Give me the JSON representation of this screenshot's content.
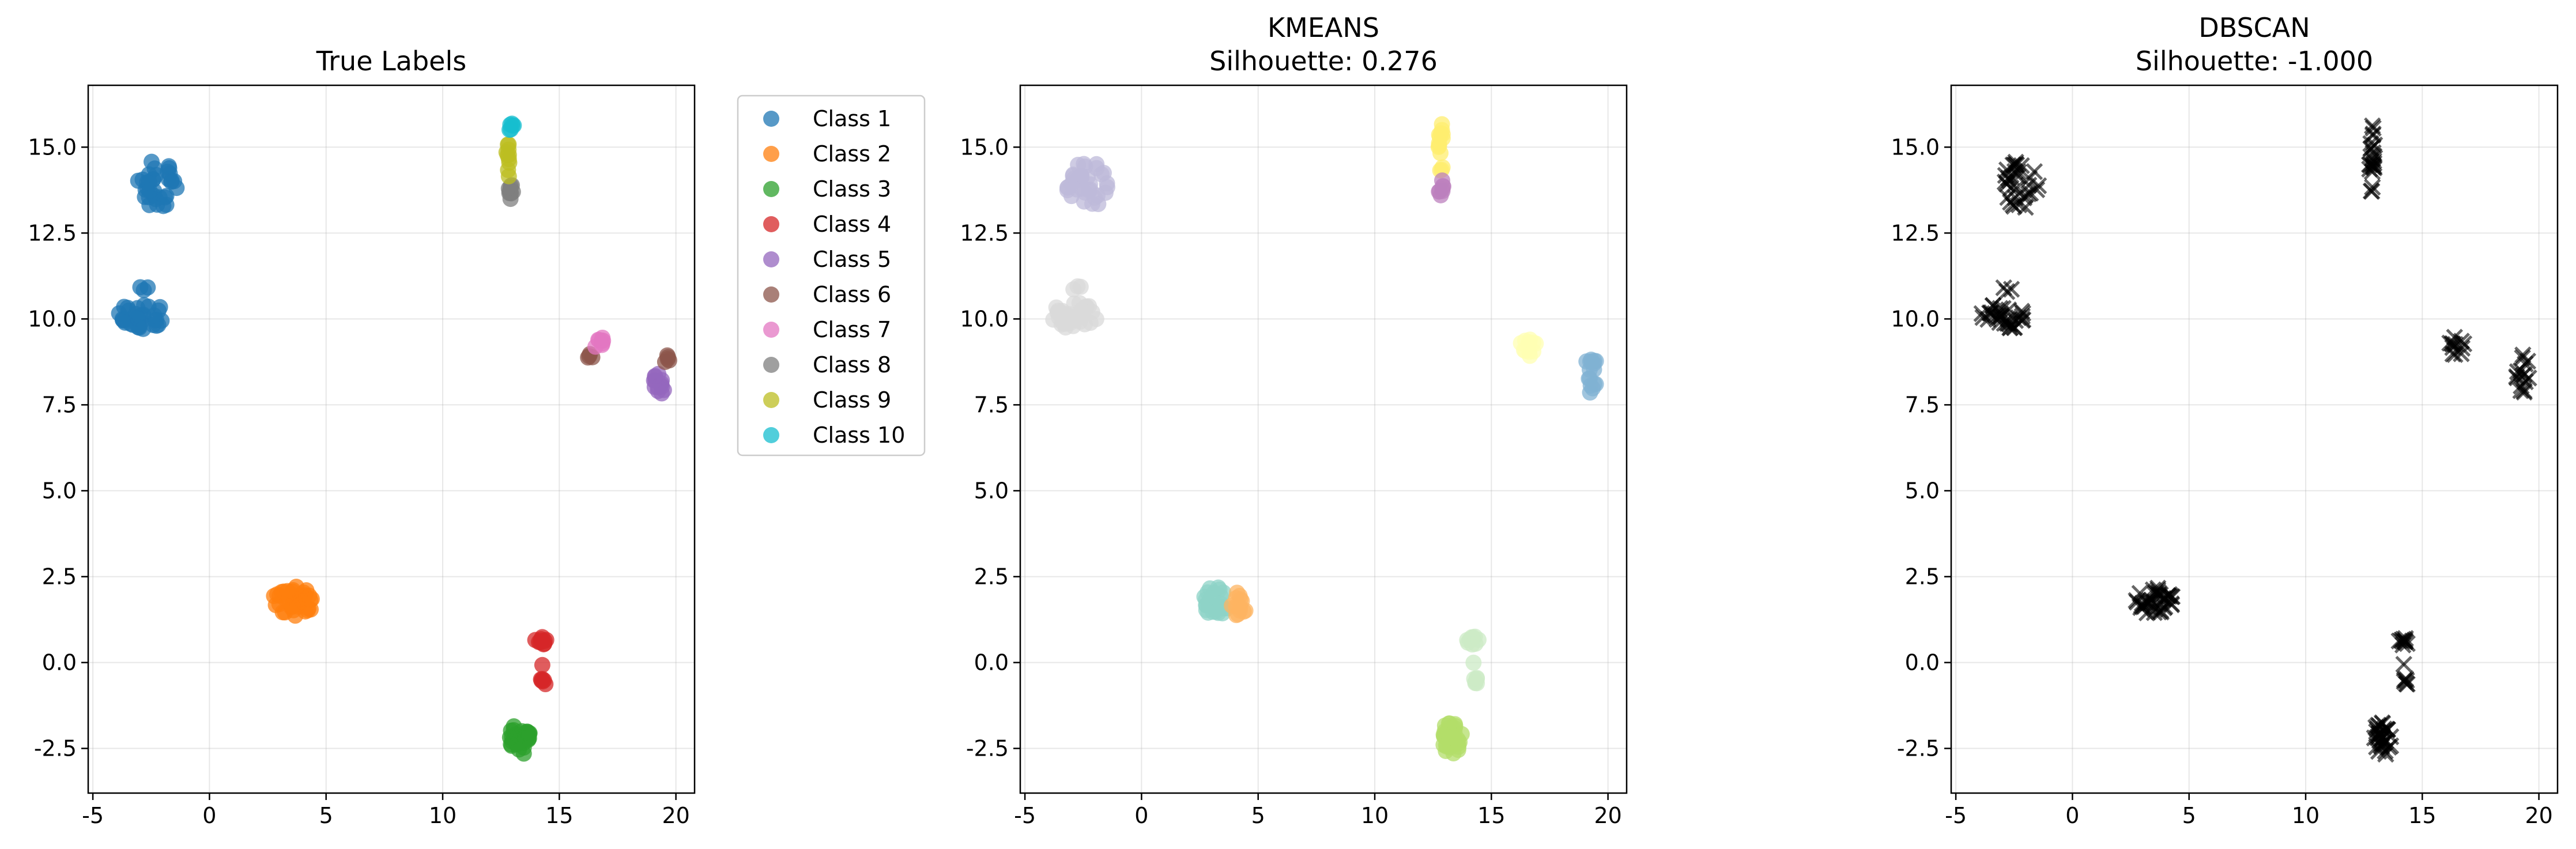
{
  "chart_data": [
    {
      "type": "scatter",
      "title": "True Labels",
      "subtitle": "",
      "xlabel": "",
      "ylabel": "",
      "xlim": [
        -5.2,
        20.8
      ],
      "ylim": [
        -3.8,
        16.8
      ],
      "xticks": [
        -5,
        0,
        5,
        10,
        15,
        20
      ],
      "yticks": [
        -2.5,
        0.0,
        2.5,
        5.0,
        7.5,
        10.0,
        12.5,
        15.0
      ],
      "grid": true,
      "legend": {
        "position": "outside-right",
        "entries": [
          "Class 1",
          "Class 2",
          "Class 3",
          "Class 4",
          "Class 5",
          "Class 6",
          "Class 7",
          "Class 8",
          "Class 9",
          "Class 10"
        ]
      },
      "marker": "circle",
      "series": [
        {
          "name": "Class 1",
          "color": "#1f77b4",
          "clusters": [
            {
              "cx": -2.3,
              "cy": 13.9,
              "rx": 0.9,
              "ry": 0.7,
              "n": 34
            },
            {
              "cx": -2.9,
              "cy": 10.1,
              "rx": 1.0,
              "ry": 0.4,
              "n": 34
            },
            {
              "cx": -2.8,
              "cy": 10.9,
              "rx": 0.2,
              "ry": 0.12,
              "n": 3
            }
          ]
        },
        {
          "name": "Class 2",
          "color": "#ff7f0e",
          "clusters": [
            {
              "cx": 3.6,
              "cy": 1.8,
              "rx": 0.9,
              "ry": 0.45,
              "n": 40
            }
          ]
        },
        {
          "name": "Class 3",
          "color": "#2ca02c",
          "clusters": [
            {
              "cx": 13.3,
              "cy": -2.2,
              "rx": 0.45,
              "ry": 0.5,
              "n": 34
            }
          ]
        },
        {
          "name": "Class 4",
          "color": "#d62728",
          "clusters": [
            {
              "cx": 14.2,
              "cy": 0.65,
              "rx": 0.25,
              "ry": 0.15,
              "n": 10
            },
            {
              "cx": 14.25,
              "cy": -0.05,
              "rx": 0.05,
              "ry": 0.05,
              "n": 1
            },
            {
              "cx": 14.3,
              "cy": -0.55,
              "rx": 0.15,
              "ry": 0.12,
              "n": 6
            }
          ]
        },
        {
          "name": "Class 5",
          "color": "#9467bd",
          "clusters": [
            {
              "cx": 19.3,
              "cy": 8.1,
              "rx": 0.25,
              "ry": 0.4,
              "n": 14
            }
          ]
        },
        {
          "name": "Class 6",
          "color": "#8c564b",
          "clusters": [
            {
              "cx": 16.3,
              "cy": 8.9,
              "rx": 0.15,
              "ry": 0.1,
              "n": 4
            },
            {
              "cx": 19.6,
              "cy": 8.9,
              "rx": 0.15,
              "ry": 0.2,
              "n": 5
            }
          ]
        },
        {
          "name": "Class 7",
          "color": "#e377c2",
          "clusters": [
            {
              "cx": 16.7,
              "cy": 9.35,
              "rx": 0.25,
              "ry": 0.2,
              "n": 8
            }
          ]
        },
        {
          "name": "Class 8",
          "color": "#7f7f7f",
          "clusters": [
            {
              "cx": 12.9,
              "cy": 13.8,
              "rx": 0.12,
              "ry": 0.35,
              "n": 10
            }
          ]
        },
        {
          "name": "Class 9",
          "color": "#bcbd22",
          "clusters": [
            {
              "cx": 12.8,
              "cy": 14.6,
              "rx": 0.1,
              "ry": 0.5,
              "n": 10
            }
          ]
        },
        {
          "name": "Class 10",
          "color": "#17becf",
          "clusters": [
            {
              "cx": 12.95,
              "cy": 15.6,
              "rx": 0.1,
              "ry": 0.25,
              "n": 6
            }
          ]
        }
      ]
    },
    {
      "type": "scatter",
      "title": "KMEANS",
      "subtitle": "Silhouette: 0.276",
      "xlabel": "",
      "ylabel": "",
      "xlim": [
        -5.2,
        20.8
      ],
      "ylim": [
        -3.8,
        16.8
      ],
      "xticks": [
        -5,
        0,
        5,
        10,
        15,
        20
      ],
      "yticks": [
        -2.5,
        0.0,
        2.5,
        5.0,
        7.5,
        10.0,
        12.5,
        15.0
      ],
      "grid": true,
      "marker": "circle",
      "series": [
        {
          "color": "#bebada",
          "clusters": [
            {
              "cx": -2.3,
              "cy": 13.9,
              "rx": 0.9,
              "ry": 0.7,
              "n": 34
            }
          ]
        },
        {
          "color": "#d9d9d9",
          "clusters": [
            {
              "cx": -2.9,
              "cy": 10.1,
              "rx": 1.0,
              "ry": 0.4,
              "n": 34
            },
            {
              "cx": -2.8,
              "cy": 10.9,
              "rx": 0.2,
              "ry": 0.12,
              "n": 3
            }
          ]
        },
        {
          "color": "#8dd3c7",
          "clusters": [
            {
              "cx": 3.2,
              "cy": 1.8,
              "rx": 0.55,
              "ry": 0.45,
              "n": 26
            }
          ]
        },
        {
          "color": "#fdb462",
          "clusters": [
            {
              "cx": 4.2,
              "cy": 1.7,
              "rx": 0.35,
              "ry": 0.35,
              "n": 14
            }
          ]
        },
        {
          "color": "#ccebc5",
          "clusters": [
            {
              "cx": 14.2,
              "cy": 0.65,
              "rx": 0.25,
              "ry": 0.15,
              "n": 10
            },
            {
              "cx": 14.25,
              "cy": -0.05,
              "rx": 0.05,
              "ry": 0.05,
              "n": 1
            },
            {
              "cx": 14.3,
              "cy": -0.55,
              "rx": 0.15,
              "ry": 0.12,
              "n": 6
            }
          ]
        },
        {
          "color": "#b3de69",
          "clusters": [
            {
              "cx": 13.3,
              "cy": -2.2,
              "rx": 0.45,
              "ry": 0.5,
              "n": 34
            }
          ]
        },
        {
          "color": "#80b1d3",
          "clusters": [
            {
              "cx": 19.3,
              "cy": 8.4,
              "rx": 0.3,
              "ry": 0.6,
              "n": 16
            }
          ]
        },
        {
          "color": "#ffffb3",
          "clusters": [
            {
              "cx": 16.6,
              "cy": 9.2,
              "rx": 0.35,
              "ry": 0.3,
              "n": 12
            }
          ]
        },
        {
          "color": "#ffed6f",
          "clusters": [
            {
              "cx": 12.85,
              "cy": 15.0,
              "rx": 0.12,
              "ry": 0.75,
              "n": 14
            }
          ]
        },
        {
          "color": "#bc80bd",
          "clusters": [
            {
              "cx": 12.85,
              "cy": 13.8,
              "rx": 0.12,
              "ry": 0.35,
              "n": 8
            }
          ]
        }
      ]
    },
    {
      "type": "scatter",
      "title": "DBSCAN",
      "subtitle": "Silhouette: -1.000",
      "xlabel": "",
      "ylabel": "",
      "xlim": [
        -5.2,
        20.8
      ],
      "ylim": [
        -3.8,
        16.8
      ],
      "xticks": [
        -5,
        0,
        5,
        10,
        15,
        20
      ],
      "yticks": [
        -2.5,
        0.0,
        2.5,
        5.0,
        7.5,
        10.0,
        12.5,
        15.0
      ],
      "grid": true,
      "marker": "x",
      "series": [
        {
          "color": "#000000",
          "clusters": [
            {
              "cx": -2.3,
              "cy": 13.9,
              "rx": 0.9,
              "ry": 0.7,
              "n": 34
            },
            {
              "cx": -2.9,
              "cy": 10.1,
              "rx": 1.0,
              "ry": 0.4,
              "n": 34
            },
            {
              "cx": -2.8,
              "cy": 10.9,
              "rx": 0.2,
              "ry": 0.12,
              "n": 3
            },
            {
              "cx": 3.6,
              "cy": 1.8,
              "rx": 0.9,
              "ry": 0.45,
              "n": 40
            },
            {
              "cx": 13.3,
              "cy": -2.2,
              "rx": 0.45,
              "ry": 0.5,
              "n": 34
            },
            {
              "cx": 14.2,
              "cy": 0.65,
              "rx": 0.25,
              "ry": 0.15,
              "n": 10
            },
            {
              "cx": 14.25,
              "cy": -0.05,
              "rx": 0.05,
              "ry": 0.05,
              "n": 1
            },
            {
              "cx": 14.3,
              "cy": -0.55,
              "rx": 0.15,
              "ry": 0.12,
              "n": 6
            },
            {
              "cx": 19.3,
              "cy": 8.4,
              "rx": 0.3,
              "ry": 0.6,
              "n": 16
            },
            {
              "cx": 16.5,
              "cy": 9.2,
              "rx": 0.35,
              "ry": 0.3,
              "n": 12
            },
            {
              "cx": 12.85,
              "cy": 14.6,
              "rx": 0.12,
              "ry": 1.1,
              "n": 24
            }
          ]
        }
      ]
    }
  ]
}
